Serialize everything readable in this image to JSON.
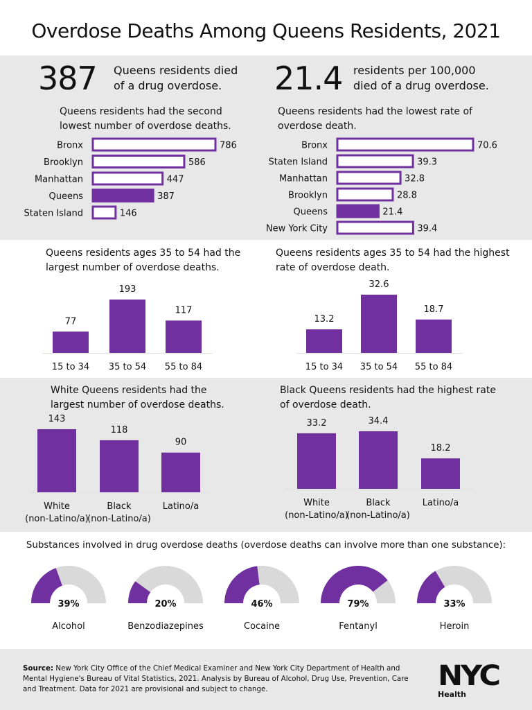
{
  "title": "Overdose Deaths Among Queens Residents, 2021",
  "colors": {
    "purple": "#7030a0",
    "white_bar": "#ffffff",
    "gray_band": "#e8e8e8",
    "donut_gray": "#d9d9d9"
  },
  "headline": {
    "left": {
      "number": "387",
      "text_line1": "Queens residents died",
      "text_line2": "of a drug overdose."
    },
    "right": {
      "number": "21.4",
      "text_line1": "residents per 100,000",
      "text_line2": "died of a drug overdose."
    }
  },
  "subtitles": {
    "boro_count": [
      "Queens residents had the second",
      "lowest number of overdose deaths."
    ],
    "boro_rate": [
      "Queens residents had the lowest rate of",
      "overdose death."
    ],
    "age_count": [
      "Queens residents ages 35 to 54 had the",
      "largest number of overdose deaths."
    ],
    "age_rate": [
      "Queens residents ages 35 to 54 had the highest",
      "rate of overdose death."
    ],
    "race_count": [
      "White Queens residents had the",
      "largest number of overdose deaths."
    ],
    "race_rate": [
      "Black Queens residents had the highest rate",
      "of overdose death."
    ]
  },
  "substances_heading": "Substances involved in drug overdose deaths (overdose deaths can involve more than one substance):",
  "source": {
    "label": "Source:",
    "text": "New York City Office of the Chief Medical Examiner and New York City Department of Health and Mental Hygiene's Bureau of Vital Statistics, 2021. Analysis by Bureau of Alcohol, Drug Use, Prevention, Care and Treatment. Data for 2021 are provisional and subject to change."
  },
  "logo": {
    "text": "NYC",
    "sub": "Health"
  },
  "chart_data": [
    {
      "id": "boro_count",
      "type": "bar",
      "orientation": "horizontal",
      "categories": [
        "Bronx",
        "Brooklyn",
        "Manhattan",
        "Queens",
        "Staten Island"
      ],
      "values": [
        786,
        586,
        447,
        387,
        146
      ],
      "value_labels": [
        "786",
        "586",
        "447",
        "387",
        "146"
      ],
      "highlight": "Queens",
      "xlim": [
        0,
        786
      ]
    },
    {
      "id": "boro_rate",
      "type": "bar",
      "orientation": "horizontal",
      "categories": [
        "Bronx",
        "Staten Island",
        "Manhattan",
        "Brooklyn",
        "Queens",
        "New York City"
      ],
      "values": [
        70.6,
        39.3,
        32.8,
        28.8,
        21.4,
        39.4
      ],
      "value_labels": [
        "70.6",
        "39.3",
        "32.8",
        "28.8",
        "21.4",
        "39.4"
      ],
      "highlight": "Queens",
      "xlim": [
        0,
        70.6
      ]
    },
    {
      "id": "age_count",
      "type": "bar",
      "orientation": "vertical",
      "categories": [
        "15 to 34",
        "35 to 54",
        "55 to 84"
      ],
      "values": [
        77,
        193,
        117
      ],
      "value_labels": [
        "77",
        "193",
        "117"
      ],
      "ylim": [
        0,
        193
      ]
    },
    {
      "id": "age_rate",
      "type": "bar",
      "orientation": "vertical",
      "categories": [
        "15 to 34",
        "35 to 54",
        "55 to 84"
      ],
      "values": [
        13.2,
        32.6,
        18.7
      ],
      "value_labels": [
        "13.2",
        "32.6",
        "18.7"
      ],
      "ylim": [
        0,
        32.6
      ]
    },
    {
      "id": "race_count",
      "type": "bar",
      "orientation": "vertical",
      "categories": [
        [
          "White",
          "(non-Latino/a)"
        ],
        [
          "Black",
          "(non-Latino/a)"
        ],
        [
          "Latino/a"
        ]
      ],
      "values": [
        143,
        118,
        90
      ],
      "value_labels": [
        "143",
        "118",
        "90"
      ],
      "ylim": [
        0,
        143
      ]
    },
    {
      "id": "race_rate",
      "type": "bar",
      "orientation": "vertical",
      "categories": [
        [
          "White",
          "(non-Latino/a)"
        ],
        [
          "Black",
          "(non-Latino/a)"
        ],
        [
          "Latino/a"
        ]
      ],
      "values": [
        33.2,
        34.4,
        18.2
      ],
      "value_labels": [
        "33.2",
        "34.4",
        "18.2"
      ],
      "ylim": [
        0,
        34.4
      ]
    },
    {
      "id": "substances",
      "type": "pie",
      "style": "half-donut gauge",
      "categories": [
        "Alcohol",
        "Benzodiazepines",
        "Cocaine",
        "Fentanyl",
        "Heroin"
      ],
      "values": [
        39,
        20,
        46,
        79,
        33
      ],
      "value_labels": [
        "39%",
        "20%",
        "46%",
        "79%",
        "33%"
      ]
    }
  ]
}
